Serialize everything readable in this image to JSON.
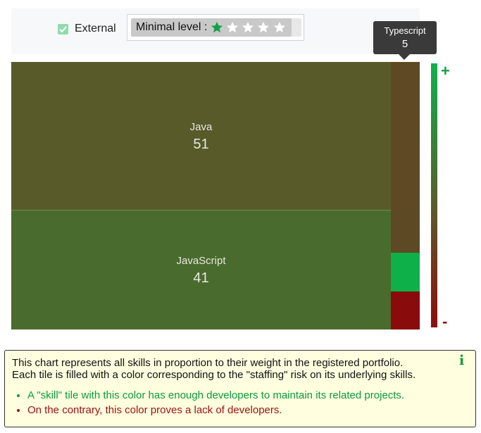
{
  "filters": {
    "external_label": "External",
    "external_checked": true,
    "minimal_level_label": "Minimal level :",
    "minimal_level_rating": 1,
    "minimal_level_max": 5
  },
  "treemap": {
    "tiles": [
      {
        "name": "Java",
        "value": "51",
        "color": "#585a2a"
      },
      {
        "name": "JavaScript",
        "value": "41",
        "color": "#4a6b2e"
      },
      {
        "name": "Typescript",
        "value": "5",
        "color": "#5d4a24"
      },
      {
        "color": "#0eb04a"
      },
      {
        "color": "#8a0b0b"
      }
    ],
    "tooltip": {
      "name": "Typescript",
      "value": "5"
    }
  },
  "scale": {
    "plus": "+",
    "minus": "-",
    "top_color": "#10b050",
    "bottom_color": "#8c0e0e"
  },
  "legend": {
    "line1": "This chart represents all skills in proportion to their weight in the registered portfolio.",
    "line2": "Each tile is filled with a color corresponding to the \"staffing\" risk on its underlying skills.",
    "good": "A \"skill\" tile with this color has enough developers to maintain its related projects.",
    "bad": "On the contrary, this color proves a lack of developers.",
    "info_icon": "i"
  }
}
